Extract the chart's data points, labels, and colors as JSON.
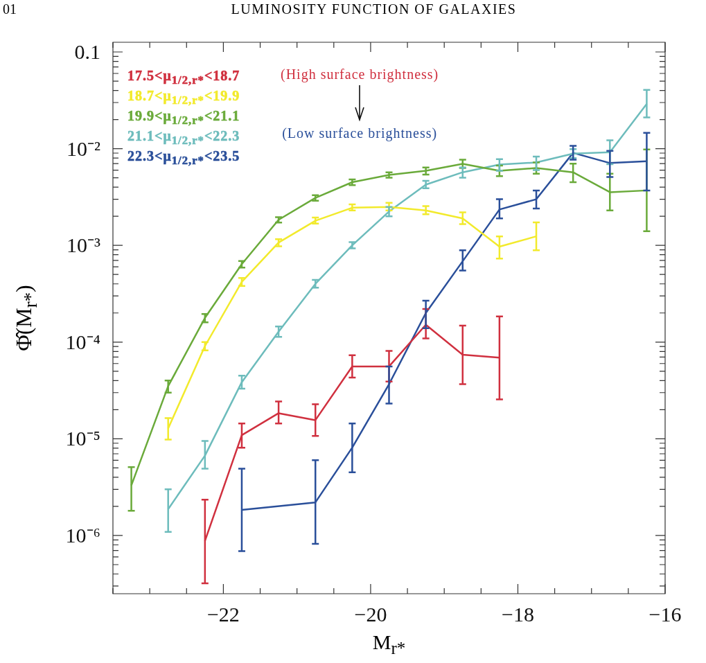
{
  "chart_data": {
    "type": "line",
    "title": "LUMINOSITY FUNCTION OF GALAXIES",
    "xlabel": "M$_{r*}$",
    "ylabel": "Φ̂(M$_{r*}$)",
    "annotations": [
      "01",
      "(High surface brightness)",
      "(Low surface brightness)"
    ],
    "log": "y",
    "grid": false,
    "legend": "top left",
    "xlim": [
      -23.5,
      -16
    ],
    "xticks": [
      {
        "value": -23.5,
        "label": null
      },
      {
        "value": -23,
        "label": null
      },
      {
        "value": -22.5,
        "label": null
      },
      -22,
      {
        "value": -21.5,
        "label": null
      },
      {
        "value": -21,
        "label": null
      },
      {
        "value": -20.5,
        "label": null
      },
      -20,
      {
        "value": -19.5,
        "label": null
      },
      {
        "value": -19,
        "label": null
      },
      {
        "value": -18.5,
        "label": null
      },
      -18,
      {
        "value": -17.5,
        "label": null
      },
      {
        "value": -17,
        "label": null
      },
      {
        "value": -16.5,
        "label": null
      },
      -16
    ],
    "ylim": [
      2.5e-07,
      0.126
    ],
    "yticks": [
      {
        "value": 3e-07,
        "label": null
      },
      {
        "value": 4e-07,
        "label": null
      },
      {
        "value": 5e-07,
        "label": null
      },
      {
        "value": 6e-07,
        "label": null
      },
      {
        "value": 7e-07,
        "label": null
      },
      {
        "value": 8e-07,
        "label": null
      },
      {
        "value": 9e-07,
        "label": null
      },
      {
        "value": 1e-06,
        "label": "10⁻⁶"
      },
      {
        "value": 2e-06,
        "label": null
      },
      {
        "value": 3e-06,
        "label": null
      },
      {
        "value": 4e-06,
        "label": null
      },
      {
        "value": 5e-06,
        "label": null
      },
      {
        "value": 6e-06,
        "label": null
      },
      {
        "value": 7e-06,
        "label": null
      },
      {
        "value": 8e-06,
        "label": null
      },
      {
        "value": 9e-06,
        "label": null
      },
      {
        "value": 1e-05,
        "label": "10⁻⁵"
      },
      {
        "value": 2e-05,
        "label": null
      },
      {
        "value": 3e-05,
        "label": null
      },
      {
        "value": 4e-05,
        "label": null
      },
      {
        "value": 5e-05,
        "label": null
      },
      {
        "value": 6e-05,
        "label": null
      },
      {
        "value": 7e-05,
        "label": null
      },
      {
        "value": 8e-05,
        "label": null
      },
      {
        "value": 9e-05,
        "label": null
      },
      {
        "value": 0.0001,
        "label": "10⁻⁴"
      },
      {
        "value": 0.0002,
        "label": null
      },
      {
        "value": 0.0003,
        "label": null
      },
      {
        "value": 0.0004,
        "label": null
      },
      {
        "value": 0.0005,
        "label": null
      },
      {
        "value": 0.0006,
        "label": null
      },
      {
        "value": 0.0007,
        "label": null
      },
      {
        "value": 0.0008,
        "label": null
      },
      {
        "value": 0.0009,
        "label": null
      },
      {
        "value": 0.001,
        "label": "10⁻³"
      },
      {
        "value": 0.002,
        "label": null
      },
      {
        "value": 0.003,
        "label": null
      },
      {
        "value": 0.004,
        "label": null
      },
      {
        "value": 0.005,
        "label": null
      },
      {
        "value": 0.006,
        "label": null
      },
      {
        "value": 0.007,
        "label": null
      },
      {
        "value": 0.008,
        "label": null
      },
      {
        "value": 0.009,
        "label": null
      },
      {
        "value": 0.01,
        "label": "10⁻²"
      },
      {
        "value": 0.02,
        "label": null
      },
      {
        "value": 0.03,
        "label": null
      },
      {
        "value": 0.04,
        "label": null
      },
      {
        "value": 0.05,
        "label": null
      },
      {
        "value": 0.06,
        "label": null
      },
      {
        "value": 0.07,
        "label": null
      },
      {
        "value": 0.08,
        "label": null
      },
      {
        "value": 0.09,
        "label": null
      },
      0.1
    ],
    "series": [
      {
        "name": "17.5<μ$_{1/2,r*}$<18.7",
        "color": "#d0303f",
        "x": [
          -22.25,
          -21.75,
          -21.25,
          -20.75,
          -20.25,
          -19.75,
          -19.25,
          -18.75,
          -18.25
        ],
        "values": [
          8.8e-07,
          1.09e-05,
          1.84e-05,
          1.56e-05,
          5.6e-05,
          5.6e-05,
          0.000151,
          7.4e-05,
          6.9e-05
        ],
        "errors": [
          [
            3.2e-07,
            2.35e-06
          ],
          [
            8.1e-06,
            1.44e-05
          ],
          [
            1.44e-05,
            2.43e-05
          ],
          [
            1.07e-05,
            2.28e-05
          ],
          [
            4.3e-05,
            7.3e-05
          ],
          [
            3.9e-05,
            8.1e-05
          ],
          [
            0.000109,
            0.00022
          ],
          [
            3.67e-05,
            0.000148
          ],
          [
            2.55e-05,
            0.000184
          ]
        ]
      },
      {
        "name": "18.7<μ$_{1/2,r*}$<19.9",
        "color": "#f2ea2c",
        "x": [
          -22.75,
          -22.25,
          -21.75,
          -21.25,
          -20.75,
          -20.25,
          -19.75,
          -19.25,
          -18.75,
          -18.25,
          -17.75
        ],
        "values": [
          1.28e-05,
          9.1e-05,
          0.00042,
          0.00107,
          0.0018,
          0.00245,
          0.0025,
          0.0023,
          0.0019,
          0.00097,
          0.00124
        ],
        "errors": [
          [
            9.8e-06,
            1.64e-05
          ],
          [
            8.2e-05,
            0.0001
          ],
          [
            0.00038,
            0.00046
          ],
          [
            0.00098,
            0.00116
          ],
          [
            0.00168,
            0.00194
          ],
          [
            0.0023,
            0.00265
          ],
          [
            0.0023,
            0.00275
          ],
          [
            0.0021,
            0.00255
          ],
          [
            0.00166,
            0.0022
          ],
          [
            0.00073,
            0.00124
          ],
          [
            0.00089,
            0.00173
          ]
        ]
      },
      {
        "name": "19.9<μ$_{1/2,r*}$<21.1",
        "color": "#6aaa3a",
        "x": [
          -23.25,
          -22.75,
          -22.25,
          -21.75,
          -21.25,
          -20.75,
          -20.25,
          -19.75,
          -19.25,
          -18.75,
          -18.25,
          -17.75,
          -17.25,
          -16.75,
          -16.25
        ],
        "values": [
          3.3e-06,
          3.5e-05,
          0.000178,
          0.00064,
          0.00184,
          0.0031,
          0.0045,
          0.00535,
          0.0059,
          0.00697,
          0.0059,
          0.0063,
          0.0057,
          0.00355,
          0.0037
        ],
        "errors": [
          [
            1.8e-06,
            5.1e-06
          ],
          [
            3e-05,
            4e-05
          ],
          [
            0.00016,
            0.000195
          ],
          [
            0.00059,
            0.00069
          ],
          [
            0.00172,
            0.00196
          ],
          [
            0.0029,
            0.0033
          ],
          [
            0.0042,
            0.0048
          ],
          [
            0.005,
            0.0057
          ],
          [
            0.0054,
            0.0064
          ],
          [
            0.0063,
            0.0077
          ],
          [
            0.0052,
            0.0067
          ],
          [
            0.0055,
            0.0072
          ],
          [
            0.0045,
            0.007
          ],
          [
            0.0023,
            0.0055
          ],
          [
            0.0014,
            0.0098
          ]
        ]
      },
      {
        "name": "21.1<μ$_{1/2,r*}$<22.3",
        "color": "#6dbcbc",
        "x": [
          -22.75,
          -22.25,
          -21.75,
          -21.25,
          -20.75,
          -20.25,
          -19.75,
          -19.25,
          -18.75,
          -18.25,
          -17.75,
          -17.25,
          -16.75,
          -16.25
        ],
        "values": [
          1.87e-06,
          6.7e-06,
          3.85e-05,
          0.000128,
          0.0004,
          0.001,
          0.00224,
          0.00425,
          0.0057,
          0.00685,
          0.0072,
          0.0089,
          0.0092,
          0.029
        ],
        "errors": [
          [
            1.09e-06,
            3e-06
          ],
          [
            4.9e-06,
            9.5e-06
          ],
          [
            3.3e-05,
            4.5e-05
          ],
          [
            0.000113,
            0.000145
          ],
          [
            0.000365,
            0.00044
          ],
          [
            0.00093,
            0.00108
          ],
          [
            0.002,
            0.0025
          ],
          [
            0.0039,
            0.00465
          ],
          [
            0.005,
            0.0064
          ],
          [
            0.0059,
            0.0078
          ],
          [
            0.006,
            0.0083
          ],
          [
            0.008,
            0.0099
          ],
          [
            0.0069,
            0.0122
          ],
          [
            0.021,
            0.0405
          ]
        ]
      },
      {
        "name": "22.3<μ$_{1/2,r*}$<23.5",
        "color": "#2a4f9a",
        "x": [
          -21.75,
          -20.75,
          -20.25,
          -19.75,
          -19.25,
          -18.75,
          -18.25,
          -17.75,
          -17.25,
          -16.75,
          -16.25
        ],
        "values": [
          1.84e-06,
          2.2e-06,
          8.1e-06,
          3.67e-05,
          0.0002,
          0.000685,
          0.00235,
          0.003,
          0.00905,
          0.0071,
          0.0074
        ],
        "errors": [
          [
            6.9e-07,
            4.9e-06
          ],
          [
            8.2e-07,
            6e-06
          ],
          [
            4.5e-06,
            1.44e-05
          ],
          [
            2.31e-05,
            5.6e-05
          ],
          [
            0.000139,
            0.000268
          ],
          [
            0.00055,
            0.00089
          ],
          [
            0.0019,
            0.003
          ],
          [
            0.0024,
            0.0037
          ],
          [
            0.0077,
            0.0107
          ],
          [
            0.0051,
            0.0095
          ],
          [
            0.0037,
            0.0146
          ]
        ]
      }
    ]
  }
}
